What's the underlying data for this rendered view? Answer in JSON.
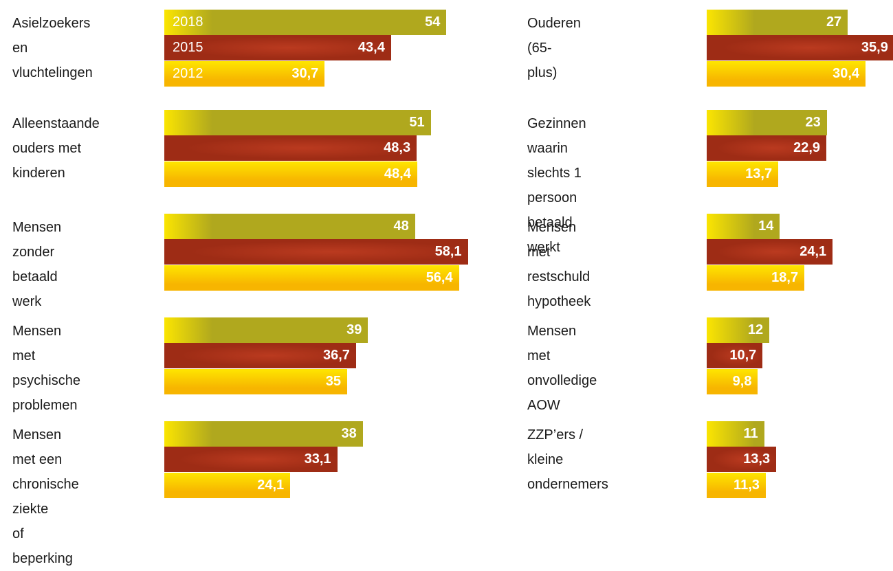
{
  "chart_data": [
    {
      "type": "bar",
      "categories": [
        "Asielzoekers en\nvluchtelingen",
        "Alleenstaande\nouders met\nkinderen",
        "Mensen zonder\nbetaald werk",
        "Mensen met\npsychische\nproblemen",
        "Mensen met een\nchronische ziekte\nof beperking"
      ],
      "series": [
        {
          "name": "2018",
          "color": "#b0a81e",
          "values": [
            54,
            51,
            48,
            39,
            38
          ]
        },
        {
          "name": "2015",
          "color": "#9e2c15",
          "values": [
            43.4,
            48.3,
            58.1,
            36.7,
            33.1
          ],
          "value_labels": [
            "43,4",
            "48,3",
            "58,1",
            "36,7",
            "33,1"
          ]
        },
        {
          "name": "2012",
          "color": "#f7b500",
          "values": [
            30.7,
            48.4,
            56.4,
            35,
            24.1
          ],
          "value_labels": [
            "30,7",
            "48,4",
            "56,4",
            "35",
            "24,1"
          ]
        }
      ]
    },
    {
      "type": "bar",
      "categories": [
        "Ouderen (65-plus)",
        "Gezinnen waarin\nslechts 1 persoon\nbetaald werkt",
        "Mensen met\nrestschuld\nhypotheek",
        "Mensen met\nonvolledige AOW",
        "ZZP’ers / kleine\nondernemers"
      ],
      "series": [
        {
          "color": "#b0a81e",
          "values": [
            27,
            23,
            14,
            12,
            11
          ]
        },
        {
          "color": "#9e2c15",
          "values": [
            35.9,
            22.9,
            24.1,
            10.7,
            13.3
          ],
          "value_labels": [
            "35,9",
            "22,9",
            "24,1",
            "10,7",
            "13,3"
          ]
        },
        {
          "color": "#f7b500",
          "values": [
            30.4,
            13.7,
            18.7,
            9.8,
            11.3
          ],
          "value_labels": [
            "30,4",
            "13,7",
            "18,7",
            "9,8",
            "11,3"
          ]
        }
      ]
    }
  ]
}
